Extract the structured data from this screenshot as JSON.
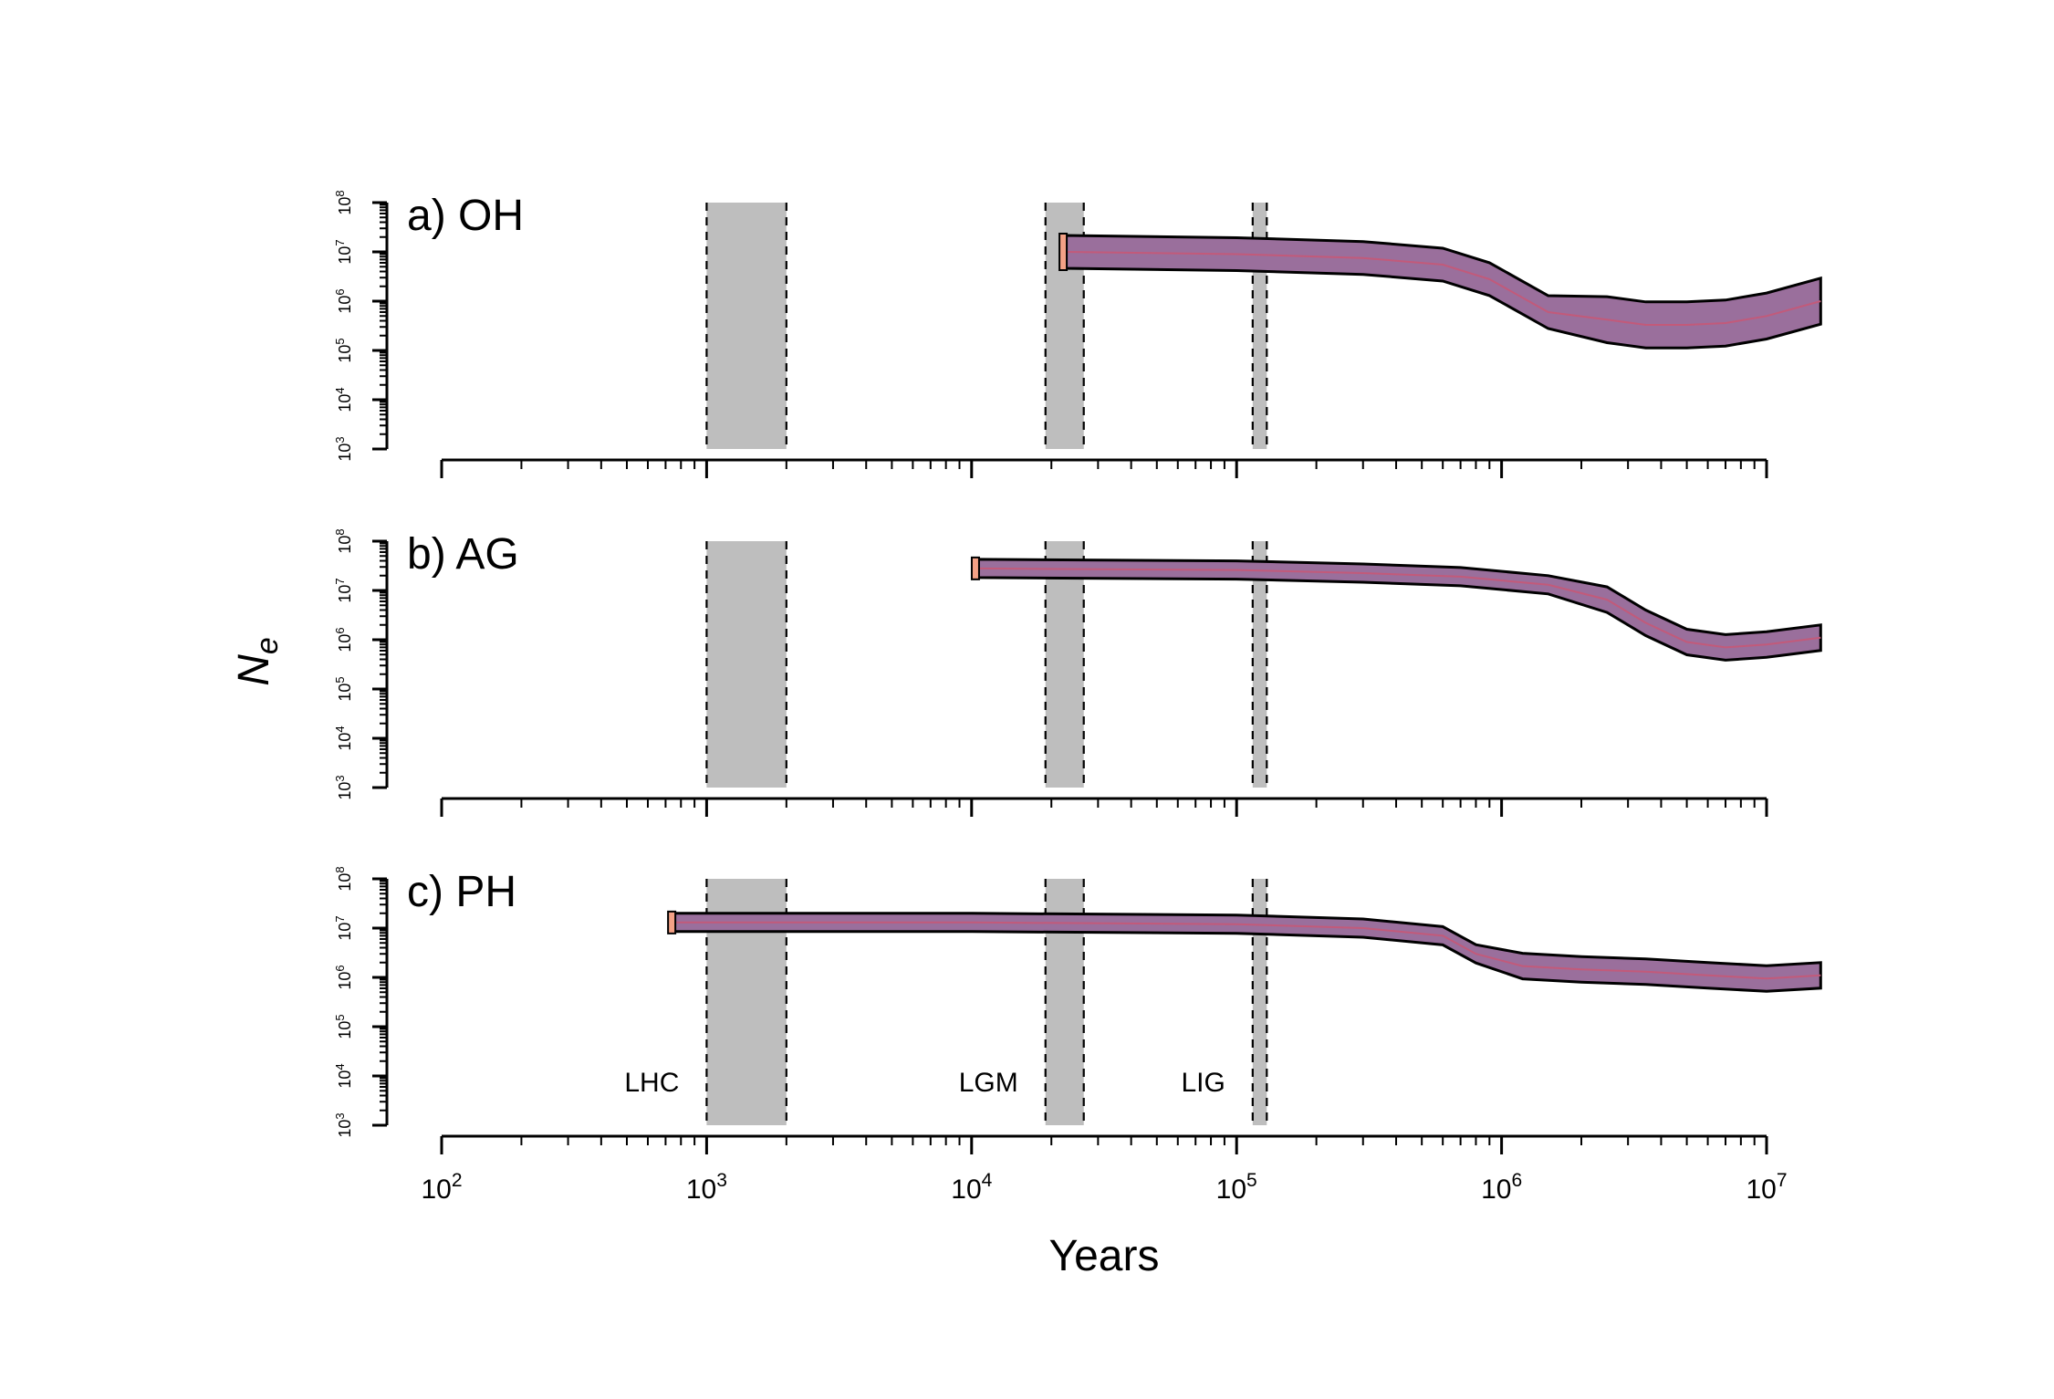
{
  "chart_data": {
    "type": "area",
    "xlabel": "Years",
    "ylabel": "Ne",
    "ylabel_main": "N",
    "ylabel_sub": "e",
    "x_scale": "log",
    "y_scale": "log",
    "xlim": [
      100,
      16000000
    ],
    "ylim": [
      1000,
      100000000
    ],
    "x_ticks": [
      {
        "base": "10",
        "exp": "2",
        "value": 100
      },
      {
        "base": "10",
        "exp": "3",
        "value": 1000
      },
      {
        "base": "10",
        "exp": "4",
        "value": 10000
      },
      {
        "base": "10",
        "exp": "5",
        "value": 100000
      },
      {
        "base": "10",
        "exp": "6",
        "value": 1000000
      },
      {
        "base": "10",
        "exp": "7",
        "value": 10000000
      }
    ],
    "y_ticks": [
      {
        "base": "10",
        "exp": "3",
        "value": 1000
      },
      {
        "base": "10",
        "exp": "4",
        "value": 10000
      },
      {
        "base": "10",
        "exp": "5",
        "value": 100000
      },
      {
        "base": "10",
        "exp": "6",
        "value": 1000000
      },
      {
        "base": "10",
        "exp": "7",
        "value": 10000000
      },
      {
        "base": "10",
        "exp": "8",
        "value": 100000000
      }
    ],
    "periods": [
      {
        "label": "LHC",
        "start": 1000,
        "end": 2000
      },
      {
        "label": "LGM",
        "start": 19000,
        "end": 26500
      },
      {
        "label": "LIG",
        "start": 115000,
        "end": 130000
      }
    ],
    "colors": {
      "band_gray": "#bebebe",
      "salmon": "#f4a186",
      "blue": "#7b84c4",
      "overlap": "#9a6f9c",
      "median_red": "#c25a7a",
      "median_blue": "#4f6ab8"
    },
    "panels": [
      {
        "label": "a) OH",
        "start_year": 22500,
        "series": [
          {
            "x": [
              22500,
              100000,
              300000,
              600000,
              900000,
              1500000,
              2500000,
              3500000,
              5000000,
              7000000,
              10000000,
              16000000
            ],
            "y": [
              10000000,
              9000000,
              7500000,
              5500000,
              2800000,
              600000,
              420000,
              330000,
              330000,
              360000,
              500000,
              1000000
            ]
          }
        ]
      },
      {
        "label": "b) AG",
        "start_year": 10500,
        "series": [
          {
            "x": [
              10500,
              100000,
              300000,
              700000,
              1500000,
              2500000,
              3500000,
              5000000,
              7000000,
              10000000,
              16000000
            ],
            "y": [
              28000000,
              26000000,
              22500000,
              19000000,
              13000000,
              6500000,
              2200000,
              900000,
              700000,
              800000,
              1100000
            ]
          }
        ]
      },
      {
        "label": "c) PH",
        "start_year": 750,
        "series": [
          {
            "x": [
              750,
              10000,
              100000,
              300000,
              600000,
              800000,
              1200000,
              2000000,
              3500000,
              6000000,
              10000000,
              16000000
            ],
            "y": [
              13000000,
              13000000,
              12000000,
              10000000,
              7000000,
              3000000,
              1700000,
              1450000,
              1300000,
              1100000,
              950000,
              1100000
            ]
          }
        ]
      }
    ]
  }
}
